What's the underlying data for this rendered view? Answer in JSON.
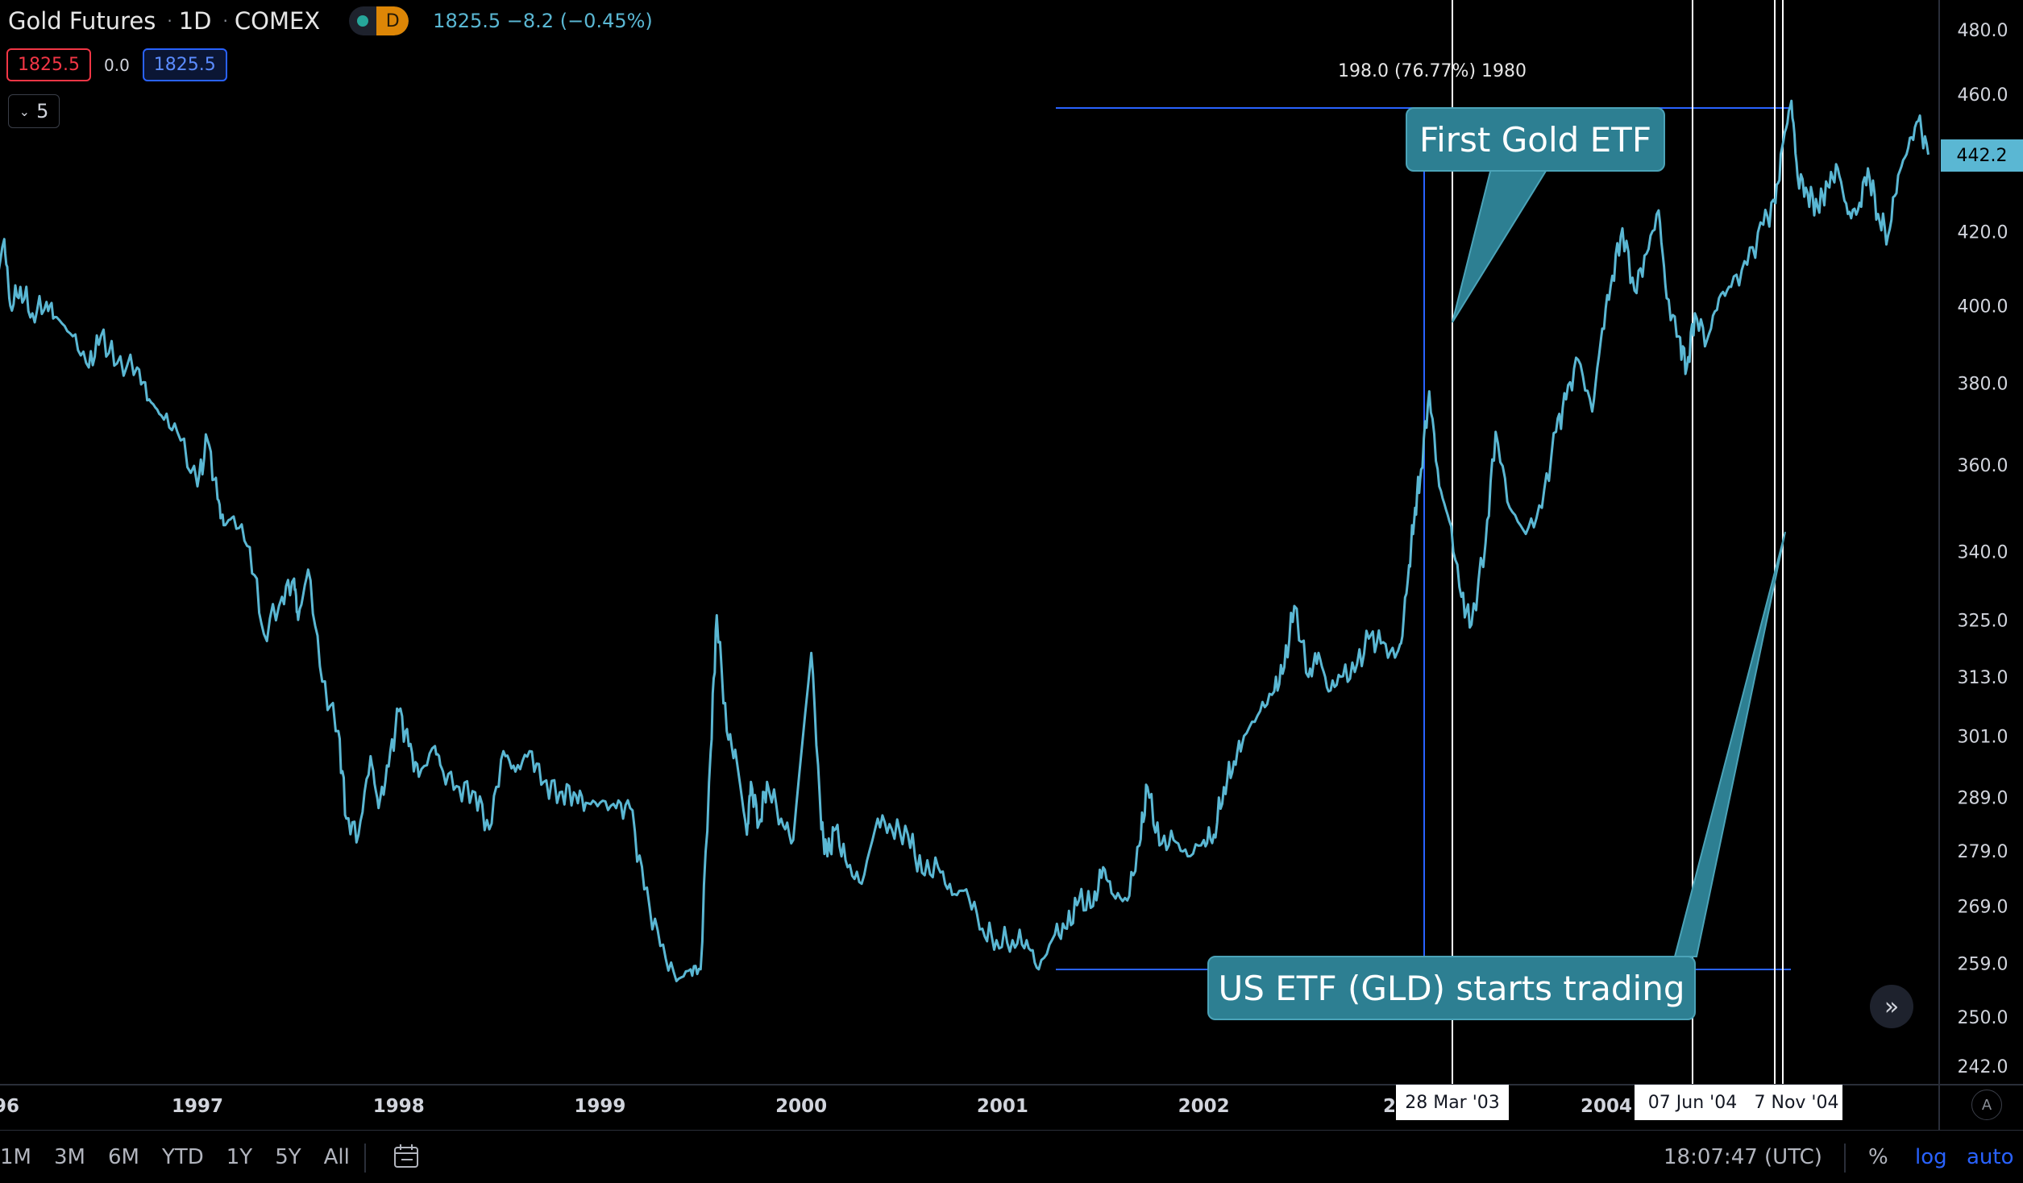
{
  "header": {
    "symbol": "Gold Futures",
    "interval": "1D",
    "exchange": "COMEX",
    "badge": "D",
    "last_price": "1825.5",
    "change": "−8.2 (−0.45%)"
  },
  "quote": {
    "bid": "1825.5",
    "spread": "0.0",
    "ask": "1825.5"
  },
  "indicators_toggle": {
    "count": "5"
  },
  "annotations": {
    "measure_label": "198.0 (76.77%) 1980",
    "callout_top": "First Gold ETF",
    "callout_bottom": "US ETF (GLD) starts trading"
  },
  "date_tags": {
    "tag1": "28 Mar '03",
    "tag2": "07 Jun '04",
    "tag3": "7 Nov '04"
  },
  "price_tag": "442.2",
  "bottom_bar": {
    "ranges": [
      "1M",
      "3M",
      "6M",
      "YTD",
      "1Y",
      "5Y",
      "All"
    ],
    "clock": "18:07:47 (UTC)",
    "percent": "%",
    "log": "log",
    "auto": "auto"
  },
  "axis_button": "A",
  "colors": {
    "series": "#5ab7d3",
    "callout": "#2d7f92",
    "line": "#2962ff",
    "background": "#000000"
  },
  "chart_data": {
    "type": "line",
    "title": "Gold Futures · 1D · COMEX",
    "scale": "log",
    "x_ticks": [
      "96",
      "1997",
      "1998",
      "1999",
      "2000",
      "2001",
      "2002",
      "2",
      "2004"
    ],
    "y_ticks": [
      "480.0",
      "460.0",
      "420.0",
      "400.0",
      "380.0",
      "360.0",
      "340.0",
      "325.0",
      "313.0",
      "301.0",
      "289.0",
      "279.0",
      "269.0",
      "259.0",
      "250.0",
      "242.0"
    ],
    "ylim": [
      242,
      480
    ],
    "xlim": [
      1995.98,
      2005.6
    ],
    "series": [
      {
        "x": [
          1995.98,
          1996.04,
          1996.07,
          1996.12,
          1996.18,
          1996.25,
          1996.3,
          1996.38,
          1996.46,
          1996.52,
          1996.6,
          1996.7,
          1996.76,
          1996.82,
          1996.9,
          1997.0,
          1997.05,
          1997.1,
          1997.13,
          1997.18,
          1997.26,
          1997.33,
          1997.42,
          1997.48,
          1997.5,
          1997.55,
          1997.62,
          1997.7,
          1997.74,
          1997.8,
          1997.86,
          1997.9,
          1997.95,
          1998.0,
          1998.05,
          1998.1,
          1998.18,
          1998.22,
          1998.3,
          1998.38,
          1998.45,
          1998.52,
          1998.58,
          1998.65,
          1998.72,
          1998.8,
          1998.87,
          1998.93,
          1999.0,
          1999.08,
          1999.15,
          1999.22,
          1999.3,
          1999.38,
          1999.45,
          1999.5,
          1999.55,
          1999.58,
          1999.63,
          1999.68,
          1999.73,
          1999.75,
          1999.79,
          1999.83,
          1999.9,
          1999.96,
          2000.05,
          2000.1,
          2000.13,
          2000.17,
          2000.23,
          2000.3,
          2000.38,
          2000.45,
          2000.53,
          2000.6,
          2000.68,
          2000.75,
          2000.82,
          2000.9,
          2000.97,
          2001.05,
          2001.12,
          2001.18,
          2001.26,
          2001.32,
          2001.38,
          2001.45,
          2001.5,
          2001.55,
          2001.62,
          2001.68,
          2001.72,
          2001.78,
          2001.85,
          2001.92,
          2002.0,
          2002.05,
          2002.1,
          2002.15,
          2002.2,
          2002.28,
          2002.35,
          2002.4,
          2002.45,
          2002.52,
          2002.57,
          2002.62,
          2002.68,
          2002.75,
          2002.82,
          2002.88,
          2002.95,
          2002.98,
          2003.02,
          2003.05,
          2003.08,
          2003.12,
          2003.17,
          2003.22,
          2003.28,
          2003.33,
          2003.4,
          2003.45,
          2003.52,
          2003.6,
          2003.68,
          2003.75,
          2003.8,
          2003.86,
          2003.93,
          2003.98,
          2004.03,
          2004.08,
          2004.14,
          2004.2,
          2004.26,
          2004.3,
          2004.36,
          2004.4,
          2004.44,
          2004.5,
          2004.56,
          2004.62,
          2004.7,
          2004.78,
          2004.84,
          2004.88,
          2004.92,
          2004.95,
          2005.0,
          2005.05,
          2005.1,
          2005.15,
          2005.2,
          2005.25,
          2005.3,
          2005.35,
          2005.4,
          2005.45,
          2005.5,
          2005.55,
          2005.6
        ],
        "y": [
          400,
          418,
          400,
          405,
          398,
          401,
          397,
          392,
          384,
          392,
          385,
          384,
          376,
          372,
          368,
          355,
          366,
          352,
          346,
          348,
          341,
          322,
          330,
          334,
          325,
          336,
          312,
          302,
          285,
          282,
          297,
          287,
          295,
          306,
          299,
          293,
          299,
          294,
          291,
          290,
          283,
          298,
          294,
          298,
          292,
          290,
          290,
          288,
          288,
          287,
          287,
          272,
          262,
          256,
          258,
          258,
          298,
          326,
          302,
          296,
          282,
          292,
          284,
          292,
          285,
          281,
          318,
          283,
          278,
          283,
          276,
          273,
          285,
          283,
          282,
          275,
          276,
          271,
          272,
          265,
          263,
          263,
          263,
          258,
          264,
          265,
          270,
          269,
          276,
          271,
          270,
          280,
          291,
          280,
          281,
          278,
          281,
          282,
          291,
          296,
          301,
          306,
          310,
          315,
          328,
          313,
          318,
          310,
          313,
          314,
          321,
          320,
          317,
          320,
          337,
          350,
          359,
          378,
          355,
          347,
          330,
          324,
          342,
          368,
          350,
          344,
          350,
          368,
          376,
          386,
          373,
          394,
          408,
          421,
          404,
          414,
          426,
          402,
          392,
          384,
          398,
          391,
          402,
          405,
          411,
          422,
          428,
          446,
          458,
          436,
          431,
          427,
          433,
          438,
          425,
          426,
          438,
          425,
          419,
          436,
          444,
          452,
          442
        ]
      }
    ]
  }
}
